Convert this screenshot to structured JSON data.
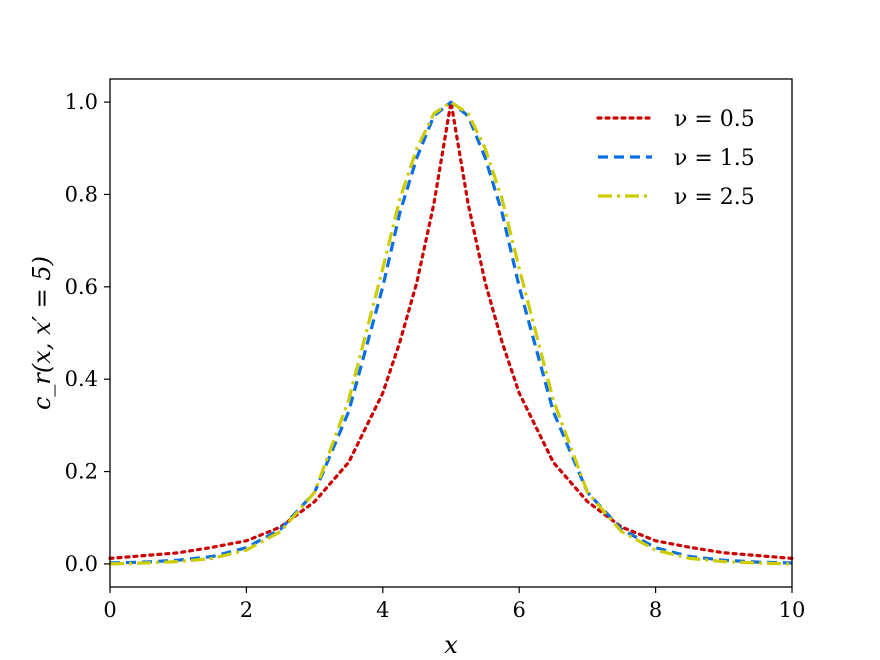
{
  "chart_data": {
    "type": "line",
    "xlabel": "x",
    "ylabel": "c_r(x, x′ = 5)",
    "xlim": [
      0,
      10
    ],
    "ylim": [
      -0.05,
      1.05
    ],
    "xticks": [
      "0",
      "2",
      "4",
      "6",
      "8",
      "10"
    ],
    "yticks": [
      "0.0",
      "0.2",
      "0.4",
      "0.6",
      "0.8",
      "1.0"
    ],
    "grid": false,
    "legend_position": "top-right",
    "series": [
      {
        "name": "ν = 0.5",
        "color": "#cc0000",
        "style": "dotted",
        "x": [
          0,
          0.5,
          1,
          1.5,
          2,
          2.5,
          3,
          3.5,
          4,
          4.25,
          4.5,
          4.75,
          5,
          5.25,
          5.5,
          5.75,
          6,
          6.5,
          7,
          7.5,
          8,
          8.5,
          9,
          9.5,
          10
        ],
        "y": [
          0.012,
          0.018,
          0.024,
          0.036,
          0.05,
          0.08,
          0.135,
          0.22,
          0.37,
          0.48,
          0.61,
          0.78,
          1.0,
          0.78,
          0.61,
          0.48,
          0.37,
          0.22,
          0.135,
          0.08,
          0.05,
          0.036,
          0.024,
          0.018,
          0.012
        ]
      },
      {
        "name": "ν = 1.5",
        "color": "#0a6ee6",
        "style": "dashed",
        "x": [
          0,
          0.5,
          1,
          1.5,
          2,
          2.5,
          3,
          3.5,
          4,
          4.25,
          4.5,
          4.75,
          5,
          5.25,
          5.5,
          5.75,
          6,
          6.5,
          7,
          7.5,
          8,
          8.5,
          9,
          9.5,
          10
        ],
        "y": [
          0.002,
          0.004,
          0.008,
          0.016,
          0.035,
          0.075,
          0.155,
          0.33,
          0.6,
          0.76,
          0.88,
          0.97,
          1.0,
          0.97,
          0.88,
          0.76,
          0.6,
          0.33,
          0.155,
          0.075,
          0.035,
          0.016,
          0.008,
          0.004,
          0.002
        ]
      },
      {
        "name": "ν = 2.5",
        "color": "#cccc00",
        "style": "dashdot",
        "x": [
          0,
          0.5,
          1,
          1.5,
          2,
          2.5,
          3,
          3.5,
          4,
          4.25,
          4.5,
          4.75,
          5,
          5.25,
          5.5,
          5.75,
          6,
          6.5,
          7,
          7.5,
          8,
          8.5,
          9,
          9.5,
          10
        ],
        "y": [
          0.0,
          0.002,
          0.005,
          0.012,
          0.03,
          0.07,
          0.155,
          0.355,
          0.64,
          0.79,
          0.9,
          0.975,
          1.0,
          0.975,
          0.9,
          0.79,
          0.64,
          0.355,
          0.155,
          0.07,
          0.03,
          0.012,
          0.005,
          0.002,
          0.0
        ]
      }
    ]
  }
}
